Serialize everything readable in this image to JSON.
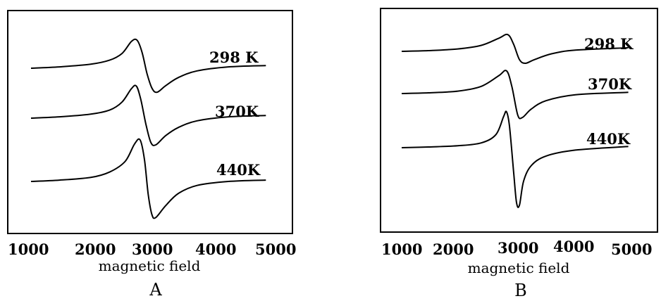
{
  "chart_data": [
    {
      "panel_label": "A",
      "type": "line",
      "xlabel": "magnetic field",
      "xlim": [
        1000,
        5000
      ],
      "x_ticks": [
        "1000",
        "2000",
        "3000",
        "4000",
        "5000"
      ],
      "series": [
        {
          "name": "298 K",
          "points": [
            [
              1000,
              0.0
            ],
            [
              1500,
              0.05
            ],
            [
              2000,
              0.15
            ],
            [
              2300,
              0.3
            ],
            [
              2500,
              0.55
            ],
            [
              2650,
              1.0
            ],
            [
              2740,
              1.05
            ],
            [
              2820,
              0.6
            ],
            [
              2900,
              -0.2
            ],
            [
              2980,
              -0.75
            ],
            [
              3060,
              -0.9
            ],
            [
              3200,
              -0.65
            ],
            [
              3400,
              -0.35
            ],
            [
              3700,
              -0.1
            ],
            [
              4200,
              0.05
            ],
            [
              4800,
              0.1
            ]
          ]
        },
        {
          "name": "370K",
          "points": [
            [
              1000,
              0.0
            ],
            [
              1500,
              0.05
            ],
            [
              2000,
              0.15
            ],
            [
              2300,
              0.3
            ],
            [
              2500,
              0.6
            ],
            [
              2650,
              1.1
            ],
            [
              2730,
              1.2
            ],
            [
              2800,
              0.7
            ],
            [
              2880,
              -0.2
            ],
            [
              2960,
              -0.9
            ],
            [
              3040,
              -1.0
            ],
            [
              3200,
              -0.65
            ],
            [
              3400,
              -0.35
            ],
            [
              3700,
              -0.1
            ],
            [
              4200,
              0.05
            ],
            [
              4800,
              0.1
            ]
          ]
        },
        {
          "name": "440K",
          "points": [
            [
              1000,
              0.0
            ],
            [
              1500,
              0.05
            ],
            [
              2000,
              0.15
            ],
            [
              2300,
              0.35
            ],
            [
              2550,
              0.75
            ],
            [
              2700,
              1.4
            ],
            [
              2790,
              1.55
            ],
            [
              2860,
              0.8
            ],
            [
              2920,
              -0.5
            ],
            [
              2980,
              -1.25
            ],
            [
              3040,
              -1.35
            ],
            [
              3200,
              -0.9
            ],
            [
              3400,
              -0.45
            ],
            [
              3700,
              -0.15
            ],
            [
              4200,
              0.0
            ],
            [
              4800,
              0.05
            ]
          ]
        }
      ]
    },
    {
      "panel_label": "B",
      "type": "line",
      "xlabel": "magnetic field",
      "xlim": [
        1000,
        5000
      ],
      "x_ticks": [
        "1000",
        "2000",
        "3000",
        "4000",
        "5000"
      ],
      "series": [
        {
          "name": "298 K",
          "points": [
            [
              1000,
              0.0
            ],
            [
              1500,
              0.03
            ],
            [
              2000,
              0.1
            ],
            [
              2400,
              0.25
            ],
            [
              2700,
              0.55
            ],
            [
              2850,
              0.7
            ],
            [
              2950,
              0.3
            ],
            [
              3050,
              -0.35
            ],
            [
              3150,
              -0.5
            ],
            [
              3300,
              -0.35
            ],
            [
              3600,
              -0.1
            ],
            [
              4000,
              0.05
            ],
            [
              4900,
              0.15
            ]
          ]
        },
        {
          "name": "370K",
          "points": [
            [
              1000,
              0.0
            ],
            [
              1500,
              0.03
            ],
            [
              2000,
              0.1
            ],
            [
              2400,
              0.3
            ],
            [
              2700,
              0.75
            ],
            [
              2830,
              0.95
            ],
            [
              2920,
              0.3
            ],
            [
              3020,
              -0.9
            ],
            [
              3100,
              -1.0
            ],
            [
              3250,
              -0.65
            ],
            [
              3500,
              -0.3
            ],
            [
              4000,
              -0.05
            ],
            [
              4900,
              0.05
            ]
          ]
        },
        {
          "name": "440K",
          "points": [
            [
              1000,
              0.0
            ],
            [
              1500,
              0.03
            ],
            [
              2000,
              0.08
            ],
            [
              2400,
              0.2
            ],
            [
              2650,
              0.55
            ],
            [
              2780,
              1.3
            ],
            [
              2830,
              1.5
            ],
            [
              2880,
              0.9
            ],
            [
              2950,
              -1.0
            ],
            [
              3000,
              -2.3
            ],
            [
              3050,
              -2.4
            ],
            [
              3120,
              -1.4
            ],
            [
              3250,
              -0.75
            ],
            [
              3500,
              -0.35
            ],
            [
              4000,
              -0.1
            ],
            [
              4900,
              0.05
            ]
          ]
        }
      ]
    }
  ],
  "figure_labels": [
    "A",
    "B"
  ]
}
